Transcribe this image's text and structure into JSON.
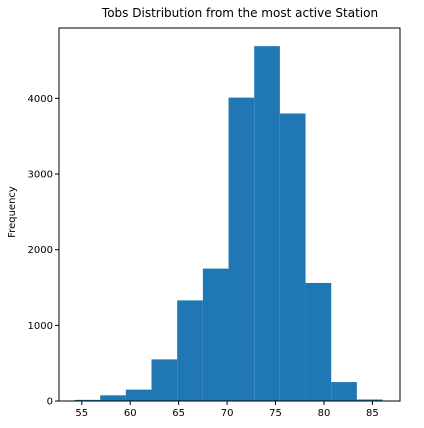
{
  "chart_data": {
    "type": "bar",
    "subtype": "histogram",
    "title": "Tobs Distribution from the most active Station",
    "xlabel": "",
    "ylabel": "Frequency",
    "xlim": [
      52.65,
      87.85
    ],
    "ylim": [
      0,
      4930
    ],
    "x_ticks": [
      55,
      60,
      65,
      70,
      75,
      80,
      85
    ],
    "y_ticks": [
      0,
      1000,
      2000,
      3000,
      4000
    ],
    "bin_edges": [
      54.25,
      56.9,
      59.55,
      62.2,
      64.85,
      67.5,
      70.15,
      72.8,
      75.45,
      78.1,
      80.75,
      83.4,
      86.05,
      88.7
    ],
    "values": [
      15,
      75,
      150,
      550,
      1330,
      1750,
      4010,
      4690,
      3800,
      1560,
      250,
      20,
      0
    ],
    "color": "#1f77b4",
    "grid": false,
    "legend": "none"
  }
}
